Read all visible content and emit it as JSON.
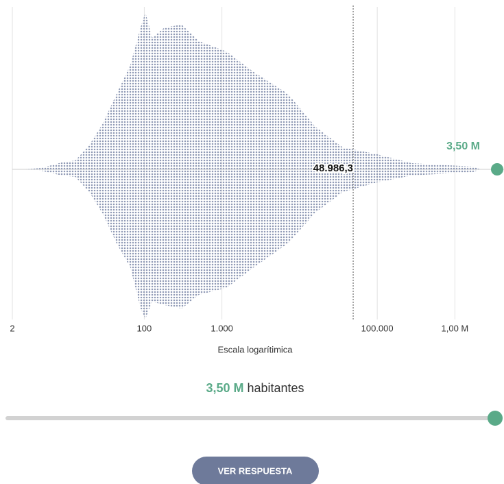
{
  "chart_data": {
    "type": "beeswarm",
    "xlabel": "Escala logarítimica",
    "xscale": "log",
    "color": "#8f9ab5",
    "xlim": [
      2,
      3500000
    ],
    "xticks": [
      2,
      100,
      {
        "value": 1000,
        "label": "1.000"
      },
      {
        "value": 100000,
        "label": "100.000"
      },
      {
        "value": 1000000,
        "label": "1,00 M"
      }
    ],
    "reference": {
      "value": 48986.3,
      "label": "48.986,3"
    },
    "guess": {
      "value": 3500000,
      "label": "3,50 M",
      "color": "#5aaa88"
    }
  },
  "slider": {
    "label": "3,50 M",
    "text": "habitantes"
  },
  "button": {
    "label": "VER RESPUESTA"
  }
}
